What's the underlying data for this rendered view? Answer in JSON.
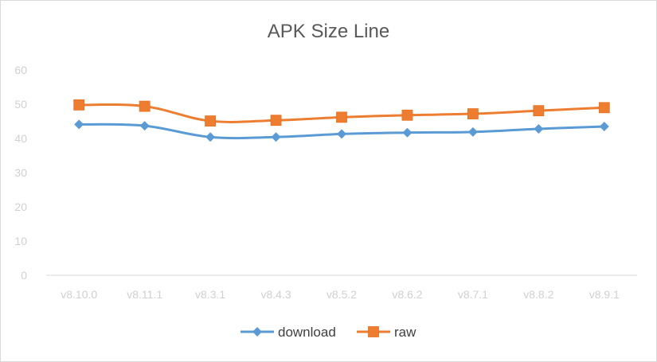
{
  "chart_data": {
    "type": "line",
    "title": "APK Size Line",
    "xlabel": "",
    "ylabel": "",
    "ylim": [
      0,
      60
    ],
    "yticks": [
      0,
      10,
      20,
      30,
      40,
      50,
      60
    ],
    "categories": [
      "v8.10.0",
      "v8.11.1",
      "v8.3.1",
      "v8.4.3",
      "v8.5.2",
      "v8.6.2",
      "v8.7.1",
      "v8.8.2",
      "v8.9.1"
    ],
    "series": [
      {
        "name": "download",
        "color": "#5b9bd5",
        "marker": "diamond",
        "values": [
          44.1,
          43.7,
          40.4,
          40.4,
          41.3,
          41.7,
          41.9,
          42.8,
          43.5
        ]
      },
      {
        "name": "raw",
        "color": "#ed7d31",
        "marker": "square",
        "values": [
          49.8,
          49.4,
          45.1,
          45.3,
          46.2,
          46.8,
          47.2,
          48.1,
          49.0
        ]
      }
    ],
    "grid": false,
    "smooth": true,
    "legend_position": "bottom"
  }
}
